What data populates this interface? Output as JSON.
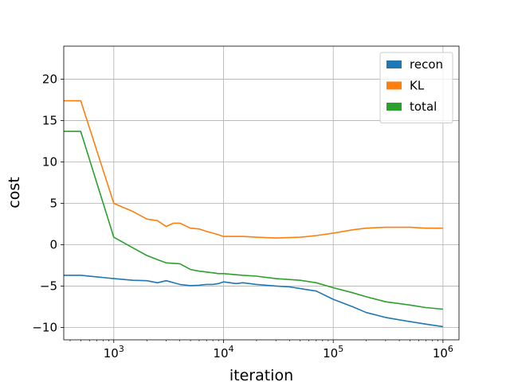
{
  "chart_data": {
    "type": "line",
    "title": "",
    "xlabel": "iteration",
    "ylabel": "cost",
    "x_scale": "log",
    "xlim": [
      350,
      1400000
    ],
    "ylim": [
      -11.5,
      24
    ],
    "x_ticks": [
      {
        "value": 1000,
        "base": "10",
        "exp": "3"
      },
      {
        "value": 10000,
        "base": "10",
        "exp": "4"
      },
      {
        "value": 100000,
        "base": "10",
        "exp": "5"
      },
      {
        "value": 1000000,
        "base": "10",
        "exp": "6"
      }
    ],
    "y_ticks": [
      -10,
      -5,
      0,
      5,
      10,
      15,
      20
    ],
    "y_tick_labels": [
      "−10",
      "−5",
      "0",
      "5",
      "10",
      "15",
      "20"
    ],
    "grid": true,
    "legend_position": "top-right",
    "series": [
      {
        "name": "recon",
        "color": "#1f77b4",
        "x": [
          350,
          500,
          1000,
          1500,
          2000,
          2500,
          3000,
          4000,
          5000,
          6000,
          7000,
          8000,
          9000,
          10000,
          13000,
          15000,
          20000,
          30000,
          40000,
          50000,
          70000,
          100000,
          150000,
          200000,
          300000,
          500000,
          700000,
          1000000
        ],
        "y": [
          -3.7,
          -3.7,
          -4.1,
          -4.3,
          -4.35,
          -4.6,
          -4.35,
          -4.8,
          -4.95,
          -4.9,
          -4.8,
          -4.8,
          -4.7,
          -4.5,
          -4.7,
          -4.6,
          -4.8,
          -5.0,
          -5.1,
          -5.3,
          -5.6,
          -6.6,
          -7.5,
          -8.2,
          -8.8,
          -9.3,
          -9.6,
          -9.9
        ]
      },
      {
        "name": "KL",
        "color": "#ff7f0e",
        "x": [
          350,
          500,
          1000,
          1500,
          2000,
          2500,
          3000,
          3500,
          4000,
          5000,
          6000,
          7000,
          8000,
          9000,
          10000,
          15000,
          20000,
          30000,
          50000,
          70000,
          100000,
          150000,
          200000,
          300000,
          500000,
          700000,
          1000000
        ],
        "y": [
          17.4,
          17.4,
          5.0,
          4.0,
          3.1,
          2.9,
          2.2,
          2.6,
          2.6,
          2.0,
          1.9,
          1.6,
          1.4,
          1.2,
          1.0,
          1.0,
          0.9,
          0.8,
          0.9,
          1.1,
          1.4,
          1.8,
          2.0,
          2.1,
          2.1,
          2.0,
          2.0
        ]
      },
      {
        "name": "total",
        "color": "#2ca02c",
        "x": [
          350,
          500,
          1000,
          1500,
          2000,
          2500,
          3000,
          4000,
          5000,
          6000,
          7000,
          8000,
          9000,
          10000,
          15000,
          20000,
          30000,
          50000,
          70000,
          100000,
          150000,
          200000,
          300000,
          500000,
          700000,
          1000000
        ],
        "y": [
          13.7,
          13.7,
          0.9,
          -0.4,
          -1.3,
          -1.8,
          -2.2,
          -2.3,
          -3.0,
          -3.2,
          -3.3,
          -3.4,
          -3.5,
          -3.5,
          -3.7,
          -3.8,
          -4.1,
          -4.3,
          -4.6,
          -5.2,
          -5.8,
          -6.3,
          -6.9,
          -7.3,
          -7.6,
          -7.8
        ]
      }
    ]
  }
}
